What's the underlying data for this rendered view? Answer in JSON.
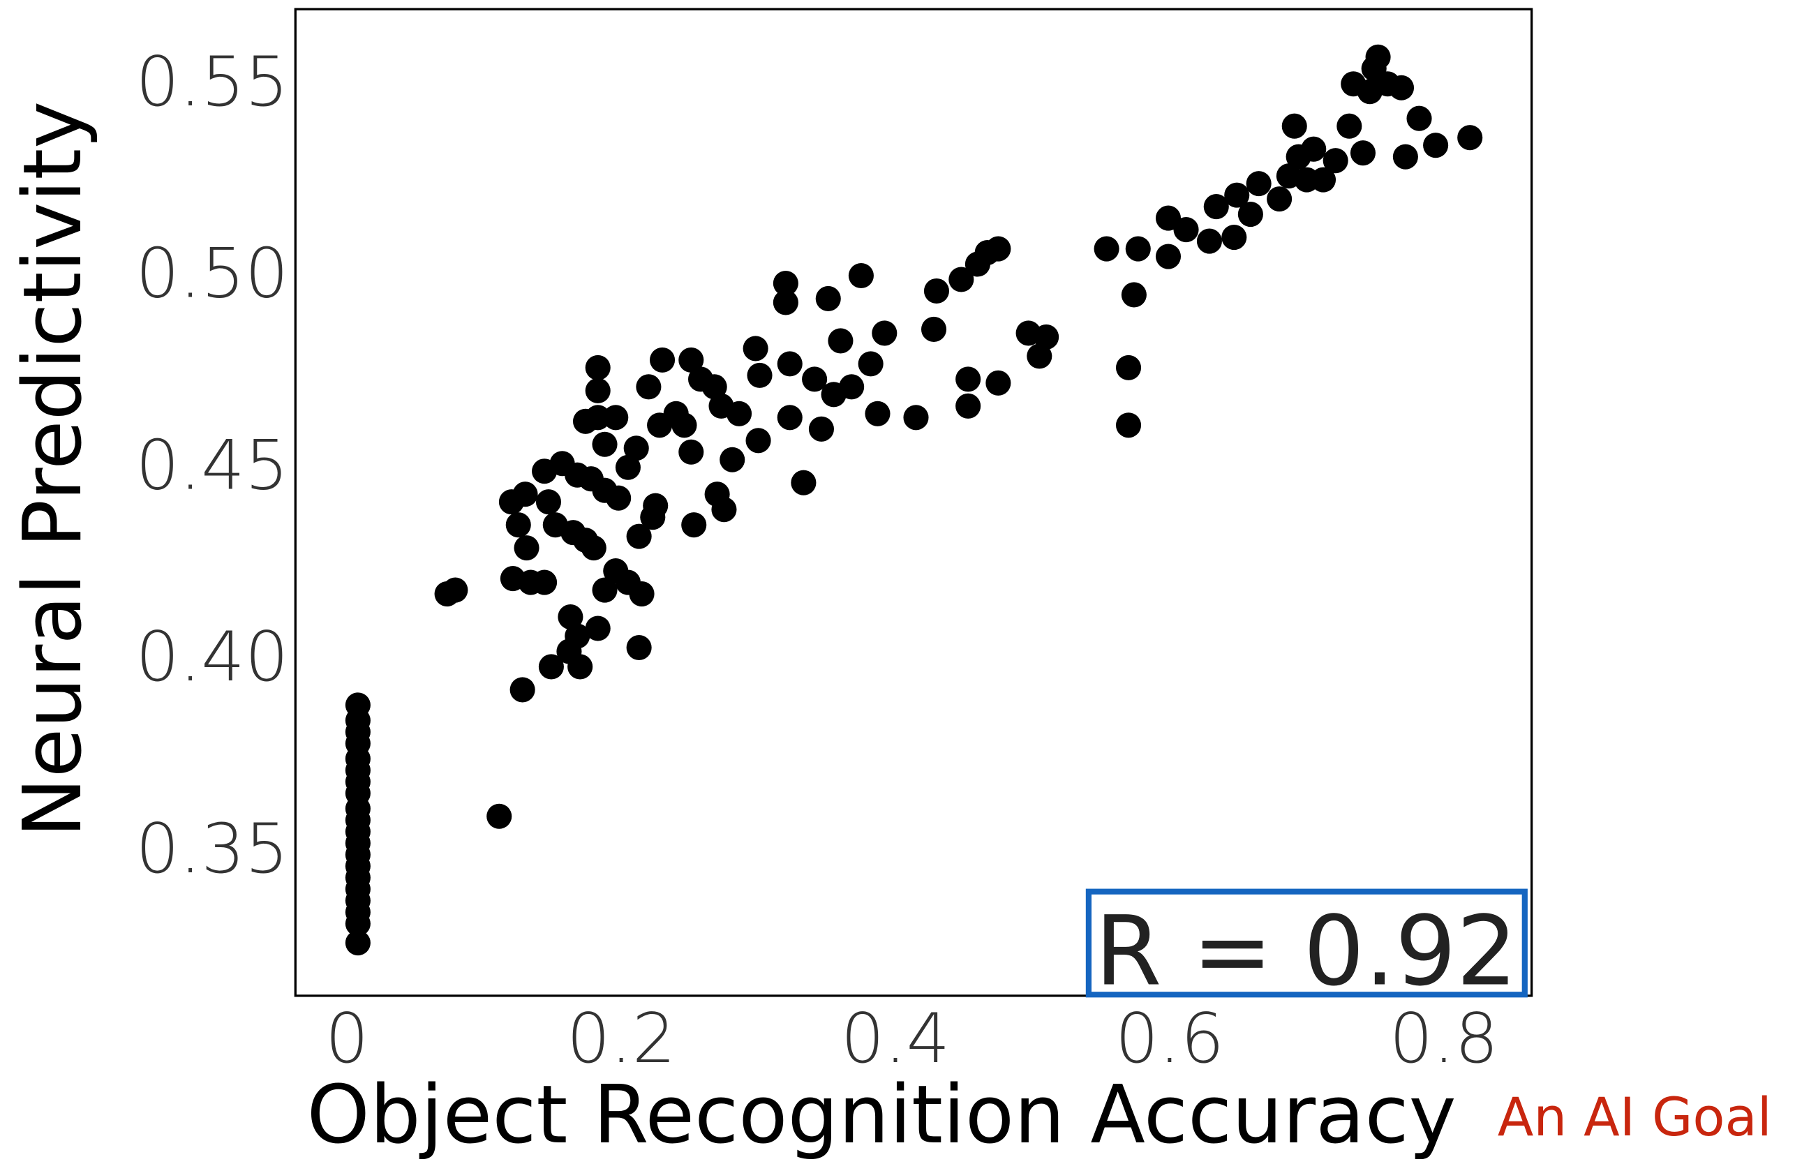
{
  "chart_data": {
    "type": "scatter",
    "x_label": "Object Recognition Accuracy",
    "y_label": "Neural Predictivity",
    "annotations": [
      "R = 0.92",
      "An AI Goal"
    ],
    "xlim": [
      -0.0376,
      0.864
    ],
    "ylim": [
      0.3112,
      0.5685
    ],
    "xticks": [
      0,
      0.2,
      0.4,
      0.6,
      0.8
    ],
    "yticks": [
      {
        "value": 0.35,
        "label": "0.35"
      },
      {
        "value": 0.4,
        "label": "0.40"
      },
      {
        "value": 0.45,
        "label": "0.45"
      },
      {
        "value": 0.5,
        "label": "0.50"
      },
      {
        "value": 0.55,
        "label": "0.55"
      }
    ],
    "grid": false,
    "series": [
      {
        "color": "#000000",
        "x": [
          0.008,
          0.008,
          0.008,
          0.008,
          0.008,
          0.008,
          0.008,
          0.008,
          0.008,
          0.008,
          0.008,
          0.008,
          0.008,
          0.008,
          0.008,
          0.008,
          0.008,
          0.008,
          0.008,
          0.008,
          0.073,
          0.079,
          0.111,
          0.128,
          0.12,
          0.13,
          0.125,
          0.131,
          0.121,
          0.134,
          0.144,
          0.157,
          0.147,
          0.152,
          0.165,
          0.174,
          0.18,
          0.168,
          0.178,
          0.188,
          0.198,
          0.144,
          0.163,
          0.168,
          0.162,
          0.149,
          0.17,
          0.183,
          0.188,
          0.196,
          0.205,
          0.215,
          0.213,
          0.213,
          0.223,
          0.225,
          0.205,
          0.211,
          0.183,
          0.183,
          0.183,
          0.174,
          0.188,
          0.196,
          0.22,
          0.23,
          0.228,
          0.24,
          0.246,
          0.251,
          0.258,
          0.251,
          0.253,
          0.27,
          0.275,
          0.281,
          0.268,
          0.273,
          0.286,
          0.298,
          0.3,
          0.301,
          0.32,
          0.32,
          0.323,
          0.323,
          0.333,
          0.346,
          0.341,
          0.351,
          0.36,
          0.355,
          0.368,
          0.375,
          0.387,
          0.382,
          0.392,
          0.415,
          0.43,
          0.428,
          0.453,
          0.453,
          0.475,
          0.448,
          0.46,
          0.467,
          0.475,
          0.497,
          0.51,
          0.505,
          0.554,
          0.577,
          0.574,
          0.57,
          0.57,
          0.599,
          0.599,
          0.612,
          0.629,
          0.634,
          0.647,
          0.649,
          0.659,
          0.665,
          0.68,
          0.687,
          0.691,
          0.694,
          0.7,
          0.712,
          0.705,
          0.721,
          0.731,
          0.741,
          0.734,
          0.746,
          0.749,
          0.752,
          0.759,
          0.769,
          0.772,
          0.782,
          0.794,
          0.819
        ],
        "values": [
          0.387,
          0.383,
          0.38,
          0.377,
          0.373,
          0.37,
          0.367,
          0.364,
          0.36,
          0.357,
          0.354,
          0.351,
          0.348,
          0.345,
          0.342,
          0.339,
          0.336,
          0.333,
          0.33,
          0.325,
          0.416,
          0.417,
          0.358,
          0.391,
          0.44,
          0.442,
          0.434,
          0.428,
          0.42,
          0.419,
          0.448,
          0.45,
          0.44,
          0.434,
          0.432,
          0.43,
          0.428,
          0.447,
          0.446,
          0.443,
          0.441,
          0.419,
          0.41,
          0.405,
          0.401,
          0.397,
          0.397,
          0.407,
          0.417,
          0.422,
          0.419,
          0.416,
          0.402,
          0.431,
          0.436,
          0.439,
          0.449,
          0.454,
          0.475,
          0.469,
          0.462,
          0.461,
          0.455,
          0.462,
          0.47,
          0.477,
          0.46,
          0.463,
          0.46,
          0.477,
          0.472,
          0.453,
          0.434,
          0.442,
          0.438,
          0.451,
          0.47,
          0.465,
          0.463,
          0.48,
          0.456,
          0.473,
          0.497,
          0.492,
          0.476,
          0.462,
          0.445,
          0.459,
          0.472,
          0.493,
          0.482,
          0.468,
          0.47,
          0.499,
          0.463,
          0.476,
          0.484,
          0.462,
          0.495,
          0.485,
          0.465,
          0.472,
          0.471,
          0.498,
          0.502,
          0.505,
          0.506,
          0.484,
          0.483,
          0.478,
          0.506,
          0.506,
          0.494,
          0.475,
          0.46,
          0.514,
          0.504,
          0.511,
          0.508,
          0.517,
          0.509,
          0.52,
          0.515,
          0.523,
          0.519,
          0.525,
          0.538,
          0.53,
          0.524,
          0.524,
          0.532,
          0.529,
          0.538,
          0.531,
          0.549,
          0.547,
          0.553,
          0.556,
          0.549,
          0.548,
          0.53,
          0.54,
          0.533,
          0.535
        ]
      }
    ]
  }
}
